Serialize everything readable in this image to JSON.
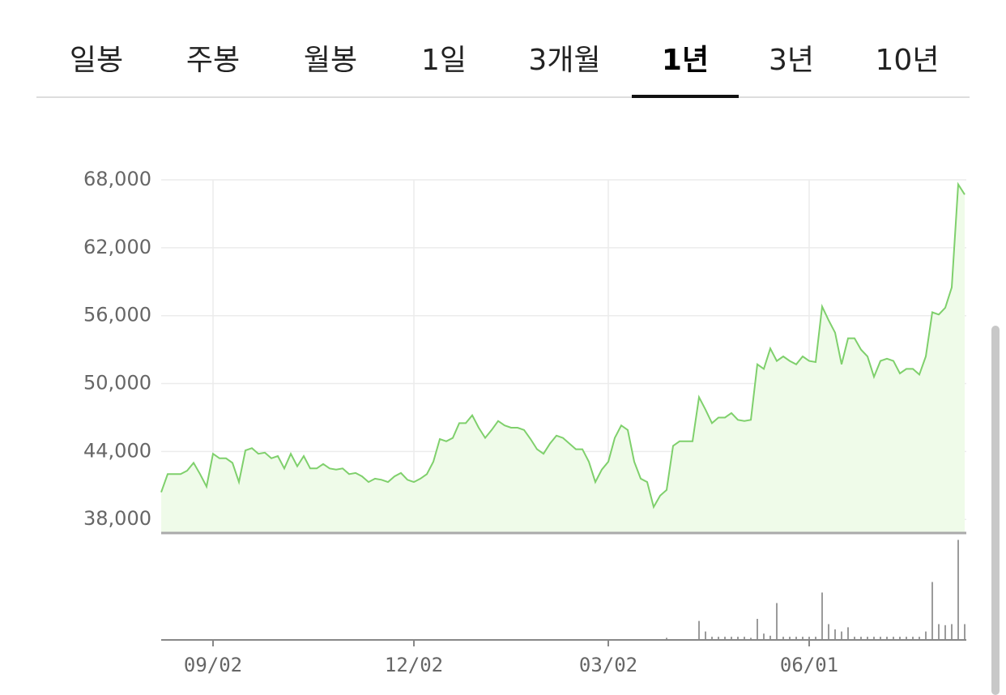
{
  "tabs": [
    "일봉",
    "주봉",
    "월봉",
    "1일",
    "3개월",
    "1년",
    "3년",
    "10년"
  ],
  "selected_tab_index": 5,
  "chart_data": [
    {
      "type": "line",
      "color": "#7fd06c",
      "fill": "#effbe9",
      "grid": true,
      "categories": [
        null,
        null,
        null,
        null,
        null,
        null,
        null,
        null,
        "09/02",
        null,
        null,
        null,
        null,
        null,
        null,
        null,
        null,
        null,
        null,
        null,
        null,
        null,
        null,
        null,
        null,
        null,
        null,
        null,
        null,
        null,
        null,
        null,
        null,
        null,
        null,
        null,
        null,
        null,
        null,
        "12/02",
        null,
        null,
        null,
        null,
        null,
        null,
        null,
        null,
        null,
        null,
        null,
        null,
        null,
        null,
        null,
        null,
        null,
        null,
        null,
        null,
        null,
        null,
        null,
        null,
        null,
        null,
        null,
        null,
        null,
        "03/02",
        null,
        null,
        null,
        null,
        null,
        null,
        null,
        null,
        null,
        null,
        null,
        null,
        null,
        null,
        null,
        null,
        null,
        null,
        null,
        null,
        null,
        null,
        null,
        null,
        null,
        null,
        null,
        null,
        null,
        null,
        "06/01",
        null,
        null,
        null,
        null,
        null,
        null,
        null,
        null,
        null,
        null,
        null,
        null,
        null,
        null,
        null,
        null,
        null,
        null,
        null,
        null,
        null,
        null,
        null,
        null
      ],
      "values": [
        40400,
        42000,
        42000,
        42000,
        42300,
        43000,
        42000,
        40900,
        43800,
        43400,
        43400,
        43000,
        41300,
        44100,
        44300,
        43800,
        43900,
        43400,
        43600,
        42500,
        43800,
        42700,
        43600,
        42500,
        42500,
        42900,
        42500,
        42400,
        42500,
        42000,
        42100,
        41800,
        41300,
        41600,
        41500,
        41300,
        41800,
        42100,
        41500,
        41300,
        41600,
        42000,
        43100,
        45100,
        44900,
        45200,
        46500,
        46500,
        47200,
        46100,
        45200,
        45900,
        46700,
        46300,
        46100,
        46100,
        45900,
        45100,
        44200,
        43800,
        44700,
        45400,
        45200,
        44700,
        44200,
        44200,
        43100,
        41300,
        42400,
        43100,
        45200,
        46300,
        45900,
        43100,
        41600,
        41300,
        39100,
        40100,
        40600,
        44500,
        44900,
        44900,
        44900,
        48800,
        47700,
        46500,
        47000,
        47000,
        47400,
        46800,
        46700,
        46800,
        51700,
        51300,
        53100,
        52000,
        52400,
        52000,
        51700,
        52400,
        52000,
        51900,
        56800,
        55600,
        54500,
        51700,
        54000,
        54000,
        53000,
        52400,
        50600,
        52000,
        52200,
        52000,
        50900,
        51300,
        51300,
        50800,
        52400,
        56300,
        56100,
        56700,
        58500,
        67600,
        66700
      ],
      "ylim": [
        36800,
        68000
      ],
      "yticks": [
        {
          "value": 38000,
          "label": "38,000"
        },
        {
          "value": 44000,
          "label": "44,000"
        },
        {
          "value": 50000,
          "label": "50,000"
        },
        {
          "value": 56000,
          "label": "56,000"
        },
        {
          "value": 62000,
          "label": "62,000"
        },
        {
          "value": 68000,
          "label": "68,000"
        }
      ]
    },
    {
      "type": "bar",
      "color": "#7a7a7a",
      "ylim": [
        0,
        100
      ],
      "values": [
        0,
        0,
        0,
        0,
        0,
        0,
        0,
        0,
        0,
        0,
        0,
        0,
        0,
        0,
        0,
        0,
        0,
        0,
        0,
        0,
        0,
        0,
        0,
        0,
        0,
        0,
        0,
        0,
        0,
        0,
        0,
        0,
        0,
        0,
        0,
        0,
        0,
        0,
        0,
        0,
        0,
        0,
        0,
        0,
        0,
        0,
        0,
        0,
        0,
        0,
        0,
        0,
        0,
        0,
        0,
        0,
        0,
        0,
        0,
        0,
        0,
        0,
        0,
        0,
        0,
        0,
        0,
        0,
        0,
        0,
        0,
        0,
        0,
        0,
        0,
        0,
        0,
        0,
        2,
        0,
        0,
        0,
        0,
        18,
        8,
        3,
        3,
        3,
        3,
        3,
        3,
        2,
        20,
        6,
        4,
        35,
        3,
        3,
        3,
        3,
        3,
        3,
        45,
        15,
        10,
        8,
        12,
        3,
        3,
        3,
        3,
        3,
        3,
        3,
        3,
        3,
        3,
        3,
        8,
        55,
        15,
        14,
        15,
        95,
        15
      ]
    }
  ]
}
